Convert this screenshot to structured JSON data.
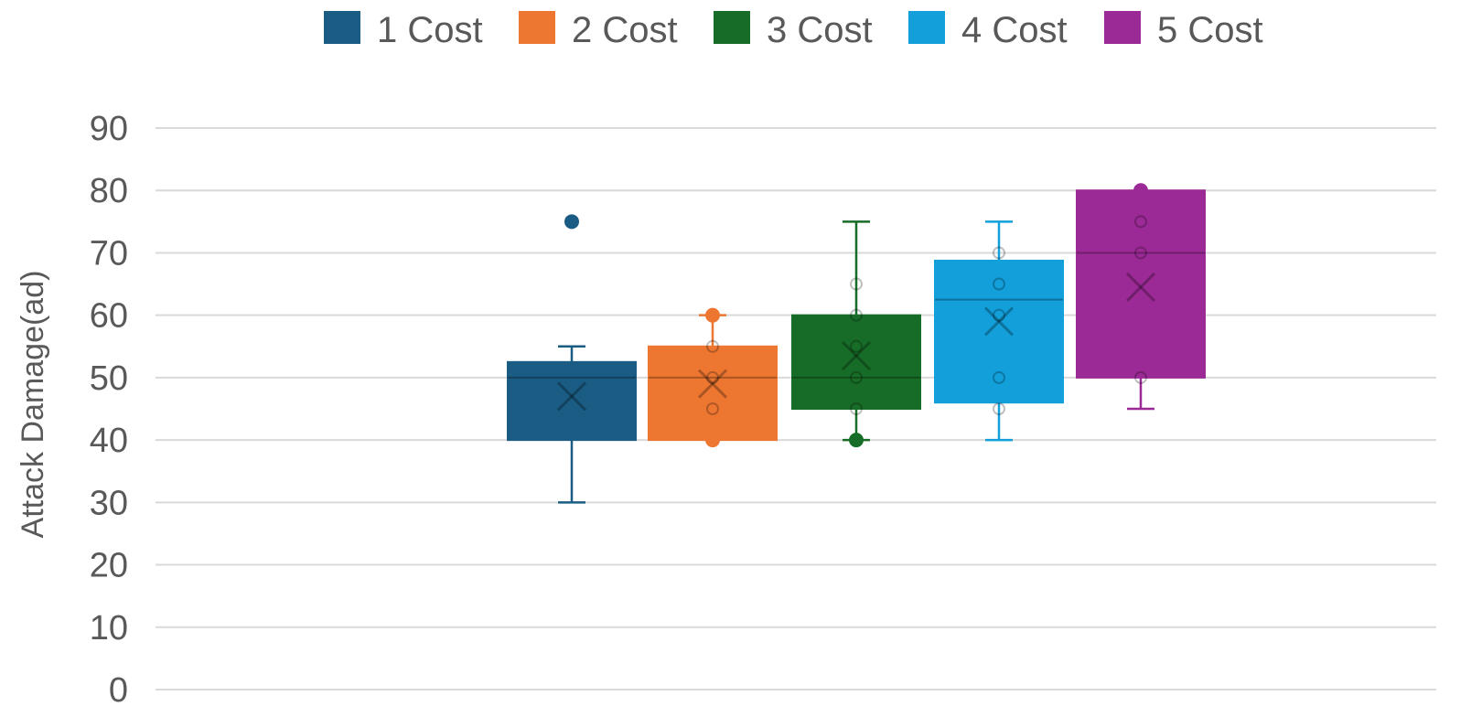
{
  "chart_data": {
    "type": "box",
    "title": "",
    "xlabel": "",
    "ylabel": "Attack Damage(ad)",
    "ylim": [
      0,
      90
    ],
    "yticks": [
      0,
      10,
      20,
      30,
      40,
      50,
      60,
      70,
      80,
      90
    ],
    "grid": true,
    "legend_position": "top",
    "series": [
      {
        "name": "1 Cost",
        "color": "#1a5c83",
        "min": 30,
        "q1": 40,
        "median": 50,
        "q3": 52.5,
        "max": 55,
        "mean": 47,
        "points": [],
        "outliers": [
          75
        ]
      },
      {
        "name": "2 Cost",
        "color": "#ed7631",
        "min": 40,
        "q1": 40,
        "median": 50,
        "q3": 55,
        "max": 60,
        "mean": 49,
        "points": [
          40,
          45,
          50,
          55,
          60
        ],
        "outliers": []
      },
      {
        "name": "3 Cost",
        "color": "#176d27",
        "min": 40,
        "q1": 45,
        "median": 50,
        "q3": 60,
        "max": 75,
        "mean": 53.5,
        "points": [
          40,
          45,
          50,
          55,
          60,
          65
        ],
        "outliers": []
      },
      {
        "name": "4 Cost",
        "color": "#129fda",
        "min": 40,
        "q1": 46,
        "median": 62.5,
        "q3": 68.75,
        "max": 75,
        "mean": 59,
        "points": [
          45,
          50,
          60,
          65,
          70
        ],
        "outliers": []
      },
      {
        "name": "5 Cost",
        "color": "#9b2a96",
        "min": 45,
        "q1": 50,
        "median": 70,
        "q3": 80,
        "max": 80,
        "mean": 64.5,
        "points": [
          50,
          70,
          75,
          80
        ],
        "outliers": []
      }
    ]
  }
}
